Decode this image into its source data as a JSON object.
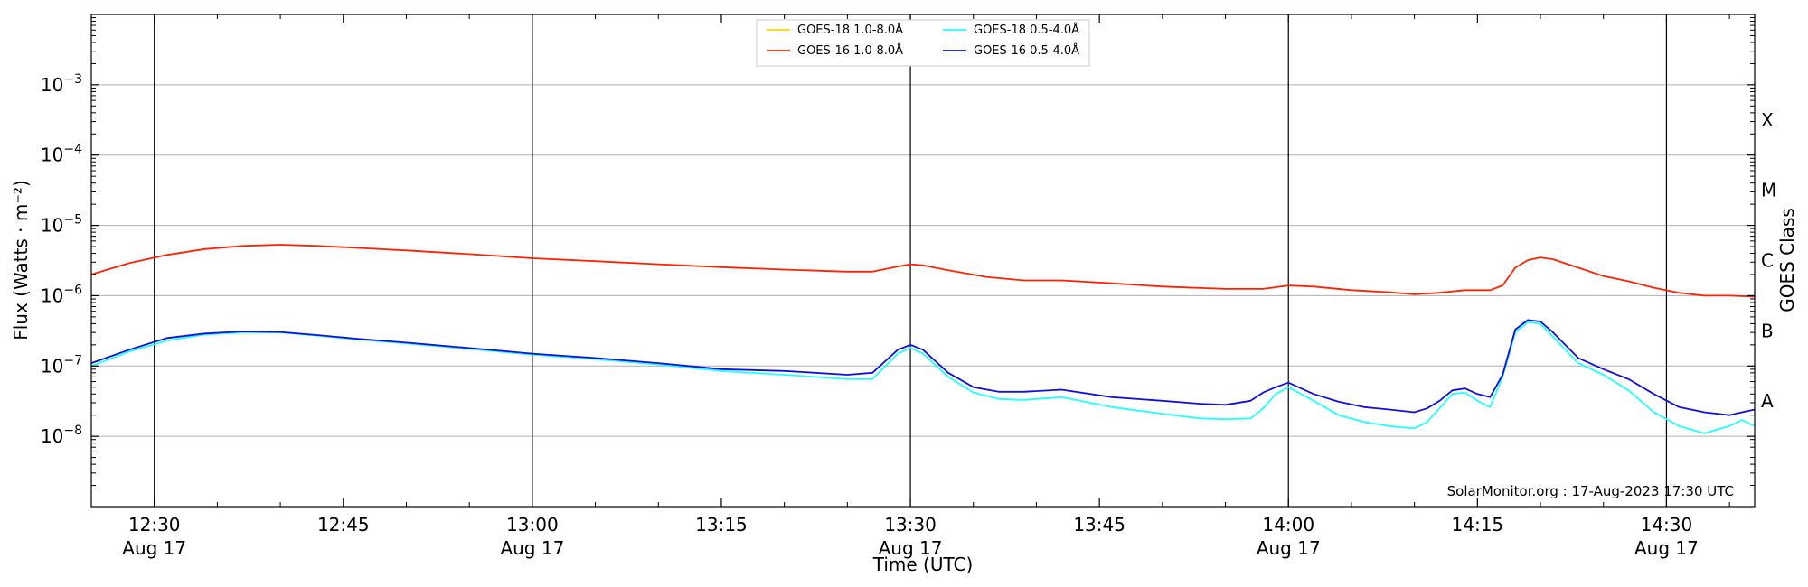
{
  "chart_data": {
    "type": "line",
    "xlabel": "Time (UTC)",
    "ylabel": "Flux (Watts · m⁻²)",
    "y2label": "GOES Class",
    "yscale": "log",
    "ylim": [
      1e-09,
      0.01
    ],
    "xlim": [
      "2023-08-17T12:25",
      "2023-08-17T14:37"
    ],
    "grid": "horizontal at major y ticks; vertical black lines at 12:30, 13:00, 13:30, 14:00, 14:30",
    "legend_position": "top-center",
    "credit": "SolarMonitor.org : 17-Aug-2023 17:30 UTC",
    "y_ticks": [
      {
        "value": 0.001,
        "base": "10",
        "exp": "−3"
      },
      {
        "value": 0.0001,
        "base": "10",
        "exp": "−4"
      },
      {
        "value": 1e-05,
        "base": "10",
        "exp": "−5"
      },
      {
        "value": 1e-06,
        "base": "10",
        "exp": "−6"
      },
      {
        "value": 1e-07,
        "base": "10",
        "exp": "−7"
      },
      {
        "value": 1e-08,
        "base": "10",
        "exp": "−8"
      }
    ],
    "x_ticks": [
      {
        "time": "12:30",
        "label": "12:30",
        "sub": "Aug 17"
      },
      {
        "time": "12:45",
        "label": "12:45",
        "sub": ""
      },
      {
        "time": "13:00",
        "label": "13:00",
        "sub": "Aug 17"
      },
      {
        "time": "13:15",
        "label": "13:15",
        "sub": ""
      },
      {
        "time": "13:30",
        "label": "13:30",
        "sub": "Aug 17"
      },
      {
        "time": "13:45",
        "label": "13:45",
        "sub": ""
      },
      {
        "time": "14:00",
        "label": "14:00",
        "sub": "Aug 17"
      },
      {
        "time": "14:15",
        "label": "14:15",
        "sub": ""
      },
      {
        "time": "14:30",
        "label": "14:30",
        "sub": "Aug 17"
      }
    ],
    "goes_classes": [
      {
        "label": "X",
        "value": 0.000316
      },
      {
        "label": "M",
        "value": 3.16e-05
      },
      {
        "label": "C",
        "value": 3.16e-06
      },
      {
        "label": "B",
        "value": 3.16e-07
      },
      {
        "label": "A",
        "value": 3.16e-08
      }
    ],
    "series": [
      {
        "name": "GOES-18 1.0-8.0Å",
        "color": "#ffd700",
        "x": [],
        "values": []
      },
      {
        "name": "GOES-16 1.0-8.0Å",
        "color": "#ff2200",
        "x": [
          "12:25",
          "12:28",
          "12:31",
          "12:34",
          "12:37",
          "12:40",
          "12:43",
          "12:46",
          "12:50",
          "12:55",
          "13:00",
          "13:05",
          "13:10",
          "13:15",
          "13:20",
          "13:25",
          "13:27",
          "13:29",
          "13:30",
          "13:31",
          "13:33",
          "13:36",
          "13:39",
          "13:42",
          "13:46",
          "13:50",
          "13:55",
          "13:58",
          "14:00",
          "14:02",
          "14:05",
          "14:08",
          "14:10",
          "14:12",
          "14:14",
          "14:16",
          "14:17",
          "14:18",
          "14:19",
          "14:20",
          "14:21",
          "14:23",
          "14:25",
          "14:27",
          "14:29",
          "14:31",
          "14:33",
          "14:35",
          "14:37"
        ],
        "values": [
          2e-06,
          2.9e-06,
          3.8e-06,
          4.6e-06,
          5.1e-06,
          5.3e-06,
          5.1e-06,
          4.8e-06,
          4.4e-06,
          3.9e-06,
          3.4e-06,
          3.1e-06,
          2.8e-06,
          2.55e-06,
          2.35e-06,
          2.2e-06,
          2.2e-06,
          2.6e-06,
          2.8e-06,
          2.7e-06,
          2.3e-06,
          1.85e-06,
          1.65e-06,
          1.65e-06,
          1.5e-06,
          1.35e-06,
          1.25e-06,
          1.25e-06,
          1.4e-06,
          1.35e-06,
          1.2e-06,
          1.12e-06,
          1.05e-06,
          1.1e-06,
          1.2e-06,
          1.2e-06,
          1.4e-06,
          2.5e-06,
          3.2e-06,
          3.5e-06,
          3.3e-06,
          2.5e-06,
          1.9e-06,
          1.6e-06,
          1.3e-06,
          1.1e-06,
          1e-06,
          1e-06,
          9.7e-07
        ]
      },
      {
        "name": "GOES-18 0.5-4.0Å",
        "color": "#22ffff",
        "x": [
          "12:25",
          "12:28",
          "12:31",
          "12:34",
          "12:37",
          "12:40",
          "12:43",
          "12:46",
          "12:50",
          "12:55",
          "13:00",
          "13:05",
          "13:10",
          "13:15",
          "13:20",
          "13:25",
          "13:27",
          "13:29",
          "13:30",
          "13:31",
          "13:33",
          "13:35",
          "13:37",
          "13:39",
          "13:42",
          "13:46",
          "13:50",
          "13:53",
          "13:55",
          "13:57",
          "13:58",
          "13:59",
          "14:00",
          "14:02",
          "14:04",
          "14:06",
          "14:08",
          "14:10",
          "14:11",
          "14:12",
          "14:13",
          "14:14",
          "14:15",
          "14:16",
          "14:17",
          "14:18",
          "14:19",
          "14:20",
          "14:21",
          "14:23",
          "14:25",
          "14:27",
          "14:29",
          "14:31",
          "14:33",
          "14:35",
          "14:36",
          "14:37"
        ],
        "values": [
          1e-07,
          1.6e-07,
          2.3e-07,
          2.8e-07,
          3e-07,
          3e-07,
          2.7e-07,
          2.4e-07,
          2.1e-07,
          1.75e-07,
          1.45e-07,
          1.25e-07,
          1.05e-07,
          8.5e-08,
          7.5e-08,
          6.5e-08,
          6.5e-08,
          1.5e-07,
          1.8e-07,
          1.5e-07,
          7e-08,
          4.2e-08,
          3.4e-08,
          3.3e-08,
          3.6e-08,
          2.6e-08,
          2.1e-08,
          1.8e-08,
          1.75e-08,
          1.8e-08,
          2.5e-08,
          4e-08,
          5e-08,
          3.2e-08,
          2e-08,
          1.6e-08,
          1.4e-08,
          1.3e-08,
          1.6e-08,
          2.5e-08,
          4e-08,
          4.2e-08,
          3.2e-08,
          2.6e-08,
          7e-08,
          3e-07,
          4.2e-07,
          4e-07,
          2.6e-07,
          1.1e-07,
          7.5e-08,
          4.5e-08,
          2.2e-08,
          1.4e-08,
          1.1e-08,
          1.4e-08,
          1.7e-08,
          1.4e-08
        ]
      },
      {
        "name": "GOES-16 0.5-4.0Å",
        "color": "#1010dd",
        "x": [
          "12:25",
          "12:28",
          "12:31",
          "12:34",
          "12:37",
          "12:40",
          "12:43",
          "12:46",
          "12:50",
          "12:55",
          "13:00",
          "13:05",
          "13:10",
          "13:15",
          "13:20",
          "13:25",
          "13:27",
          "13:29",
          "13:30",
          "13:31",
          "13:33",
          "13:35",
          "13:37",
          "13:39",
          "13:42",
          "13:46",
          "13:50",
          "13:53",
          "13:55",
          "13:57",
          "13:58",
          "13:59",
          "14:00",
          "14:02",
          "14:04",
          "14:06",
          "14:08",
          "14:10",
          "14:11",
          "14:12",
          "14:13",
          "14:14",
          "14:15",
          "14:16",
          "14:17",
          "14:18",
          "14:19",
          "14:20",
          "14:21",
          "14:23",
          "14:25",
          "14:27",
          "14:29",
          "14:31",
          "14:33",
          "14:35",
          "14:36",
          "14:37"
        ],
        "values": [
          1.1e-07,
          1.7e-07,
          2.5e-07,
          2.9e-07,
          3.1e-07,
          3.05e-07,
          2.75e-07,
          2.45e-07,
          2.15e-07,
          1.8e-07,
          1.5e-07,
          1.3e-07,
          1.1e-07,
          9e-08,
          8.5e-08,
          7.5e-08,
          8e-08,
          1.7e-07,
          2e-07,
          1.7e-07,
          8e-08,
          5e-08,
          4.3e-08,
          4.3e-08,
          4.6e-08,
          3.6e-08,
          3.2e-08,
          2.9e-08,
          2.8e-08,
          3.2e-08,
          4.2e-08,
          5e-08,
          5.8e-08,
          4e-08,
          3.1e-08,
          2.6e-08,
          2.4e-08,
          2.2e-08,
          2.5e-08,
          3.2e-08,
          4.5e-08,
          4.8e-08,
          4e-08,
          3.6e-08,
          7.5e-08,
          3.3e-07,
          4.5e-07,
          4.3e-07,
          3e-07,
          1.3e-07,
          9e-08,
          6.5e-08,
          4e-08,
          2.6e-08,
          2.2e-08,
          2e-08,
          2.2e-08,
          2.4e-08
        ]
      }
    ]
  }
}
